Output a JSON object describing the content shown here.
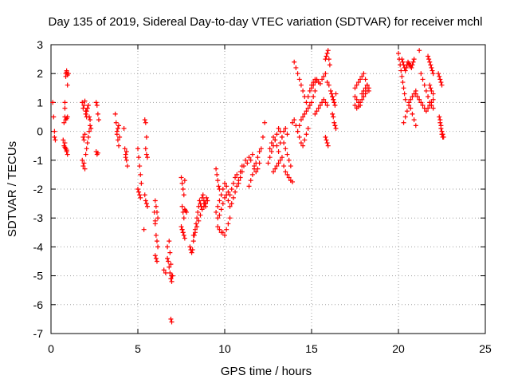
{
  "chart_data": {
    "type": "scatter",
    "title": "Day 135 of 2019, Sidereal Day-to-day VTEC variation (SDTVAR) for receiver mchl",
    "xlabel": "GPS time / hours",
    "ylabel": "SDTVAR / TECUs",
    "xlim": [
      0,
      25
    ],
    "ylim": [
      -7,
      3
    ],
    "xticks": [
      0,
      5,
      10,
      15,
      20,
      25
    ],
    "yticks": [
      3,
      2,
      1,
      0,
      -1,
      -2,
      -3,
      -4,
      -5,
      -6,
      -7
    ],
    "xtick_labels": [
      "0",
      "5",
      "10",
      "15",
      "20",
      "25"
    ],
    "ytick_labels": [
      "3",
      "2",
      "1",
      "0",
      "-1",
      "-2",
      "-3",
      "-4",
      "-5",
      "-6",
      "-7"
    ],
    "grid": true,
    "marker": "plus",
    "marker_color": "#ff0000",
    "series": [
      {
        "name": "SDTVAR",
        "x": [
          0.1,
          0.15,
          0.2,
          0.2,
          0.25,
          0.8,
          0.8,
          0.85,
          0.85,
          0.9,
          0.9,
          0.95,
          0.95,
          1.0,
          0.75,
          0.8,
          0.85,
          0.9,
          0.95,
          0.8,
          0.85,
          0.9,
          0.95,
          0.7,
          0.75,
          0.8,
          0.85,
          0.9,
          1.8,
          1.85,
          1.9,
          1.95,
          2.0,
          2.05,
          1.8,
          1.85,
          1.9,
          1.95,
          2.0,
          2.05,
          2.1,
          2.15,
          2.2,
          2.25,
          2.3,
          2.0,
          2.05,
          2.1,
          2.15,
          2.2,
          2.25,
          1.85,
          1.9,
          1.95,
          2.6,
          2.65,
          2.7,
          2.75,
          2.6,
          2.65,
          2.7,
          3.7,
          3.75,
          3.8,
          3.85,
          3.9,
          3.8,
          3.85,
          3.9,
          3.95,
          4.2,
          4.25,
          4.3,
          4.35,
          4.4,
          4.3,
          4.35,
          5.0,
          5.05,
          5.1,
          5.15,
          5.2,
          5.0,
          5.05,
          5.1,
          5.15,
          5.4,
          5.45,
          5.5,
          5.45,
          5.5,
          5.55,
          5.4,
          5.45,
          5.5,
          5.55,
          5.35,
          6.0,
          6.05,
          6.1,
          6.15,
          6.0,
          6.05,
          6.1,
          6.15,
          6.0,
          6.05,
          6.1,
          5.95,
          6.0,
          6.5,
          6.6,
          6.7,
          6.8,
          6.85,
          6.9,
          6.95,
          6.7,
          6.75,
          6.8,
          6.85,
          6.9,
          6.95,
          7.0,
          6.9,
          6.95,
          7.5,
          7.55,
          7.6,
          7.65,
          7.7,
          7.55,
          7.6,
          7.65,
          7.7,
          7.75,
          7.8,
          7.55,
          7.6,
          7.65,
          7.7,
          7.5,
          7.55,
          7.6,
          8.0,
          8.05,
          8.1,
          8.15,
          8.2,
          8.25,
          8.3,
          8.35,
          8.4,
          8.45,
          8.5,
          8.55,
          8.6,
          8.65,
          8.7,
          8.75,
          8.8,
          8.85,
          8.9,
          8.95,
          9.0,
          8.2,
          8.3,
          8.4,
          8.5,
          8.6,
          8.7,
          8.8,
          8.9,
          9.0,
          9.5,
          9.6,
          9.7,
          9.8,
          9.9,
          10.0,
          10.1,
          10.2,
          10.3,
          10.4,
          10.5,
          10.6,
          10.7,
          10.8,
          10.9,
          11.0,
          9.6,
          9.7,
          9.8,
          9.9,
          10.0,
          10.1,
          10.2,
          10.3,
          10.4,
          10.5,
          10.6,
          10.7,
          10.8,
          10.9,
          9.6,
          9.7,
          9.8,
          9.9,
          10.0,
          10.1,
          10.2,
          10.3,
          9.5,
          9.55,
          9.6,
          9.65,
          9.7,
          11.0,
          11.1,
          11.2,
          11.3,
          11.4,
          11.5,
          11.6,
          11.7,
          11.8,
          11.9,
          12.0,
          12.1,
          12.2,
          12.3,
          11.4,
          11.5,
          11.6,
          11.7,
          11.8,
          11.9,
          12.0,
          12.5,
          12.6,
          12.7,
          12.8,
          12.9,
          13.0,
          13.1,
          13.2,
          13.3,
          13.4,
          13.5,
          13.6,
          13.7,
          13.8,
          12.6,
          12.7,
          12.8,
          12.9,
          13.0,
          13.1,
          13.2,
          13.3,
          13.4,
          13.5,
          13.6,
          12.8,
          12.9,
          13.0,
          13.1,
          13.2,
          13.3,
          13.4,
          13.5,
          13.6,
          13.7,
          13.8,
          13.9,
          14.0,
          14.1,
          14.2,
          14.3,
          14.4,
          14.5,
          14.6,
          14.7,
          14.8,
          14.9,
          15.0,
          15.1,
          15.2,
          15.3,
          14.2,
          14.3,
          14.4,
          14.5,
          14.6,
          14.7,
          14.8,
          14.9,
          15.0,
          15.1,
          15.2,
          13.9,
          14.0,
          14.1,
          14.2,
          14.3,
          14.4,
          14.5,
          14.6,
          14.7,
          14.8,
          15.0,
          15.1,
          15.2,
          15.3,
          15.4,
          15.5,
          15.6,
          15.7,
          15.8,
          15.9,
          16.0,
          15.2,
          15.3,
          15.4,
          15.5,
          15.6,
          15.7,
          15.8,
          15.9,
          15.8,
          15.85,
          15.9,
          15.95,
          16.0,
          16.05,
          15.8,
          15.85,
          15.9,
          15.95,
          16.2,
          16.25,
          16.3,
          16.35,
          16.4,
          16.2,
          16.25,
          16.3,
          16.35,
          16.4,
          16.1,
          16.15,
          16.2,
          16.25,
          17.5,
          17.6,
          17.7,
          17.8,
          17.9,
          18.0,
          18.1,
          18.2,
          18.3,
          17.5,
          17.6,
          17.7,
          17.8,
          17.9,
          18.0,
          18.1,
          18.2,
          17.5,
          17.6,
          17.7,
          17.8,
          17.9,
          18.0,
          18.1,
          18.2,
          18.3,
          20.0,
          20.05,
          20.1,
          20.15,
          20.2,
          20.25,
          20.3,
          20.35,
          20.4,
          20.2,
          20.25,
          20.3,
          20.35,
          20.4,
          20.45,
          20.5,
          20.55,
          20.6,
          20.65,
          20.7,
          20.75,
          20.8,
          20.85,
          20.9,
          20.3,
          20.4,
          20.5,
          20.6,
          20.7,
          20.8,
          20.9,
          21.0,
          20.6,
          20.7,
          20.8,
          20.9,
          21.0,
          21.0,
          21.1,
          21.2,
          21.3,
          21.4,
          21.5,
          21.6,
          21.7,
          21.8,
          21.9,
          22.0,
          21.2,
          21.3,
          21.4,
          21.5,
          21.6,
          21.7,
          21.8,
          21.9,
          22.0,
          21.7,
          21.75,
          21.8,
          21.85,
          21.9,
          21.95,
          22.0,
          21.8,
          21.85,
          21.9,
          22.0,
          22.3,
          22.35,
          22.4,
          22.45,
          22.5,
          22.35,
          22.4,
          22.45,
          22.5,
          22.55,
          22.4,
          22.45,
          22.5,
          22.55,
          22.6
        ],
        "y": [
          1.0,
          0.5,
          0.0,
          -0.2,
          -0.3,
          1.0,
          0.8,
          1.9,
          2.0,
          2.05,
          2.1,
          1.95,
          1.6,
          2.0,
          0.3,
          0.5,
          0.4,
          0.45,
          0.5,
          -0.4,
          -0.6,
          -0.7,
          -0.8,
          -0.3,
          -0.5,
          -0.55,
          -0.6,
          -0.65,
          1.0,
          0.8,
          0.9,
          1.05,
          0.7,
          0.5,
          -1.0,
          -1.2,
          -1.1,
          -1.3,
          -0.8,
          -0.6,
          -0.4,
          -0.2,
          0.0,
          0.2,
          0.1,
          0.6,
          0.7,
          0.8,
          0.9,
          0.5,
          0.4,
          -0.2,
          -0.3,
          -0.1,
          1.0,
          0.9,
          0.6,
          0.4,
          -0.7,
          -0.8,
          -0.75,
          0.6,
          0.3,
          0.0,
          -0.3,
          -0.5,
          -0.1,
          0.1,
          0.2,
          -0.2,
          0.1,
          -0.6,
          -0.8,
          -1.0,
          -1.2,
          -0.9,
          -0.7,
          -0.6,
          -0.9,
          -1.2,
          -1.5,
          -1.8,
          -2.0,
          -2.1,
          -2.2,
          -2.3,
          0.4,
          0.3,
          -0.2,
          -0.6,
          -0.8,
          -0.9,
          -2.2,
          -2.4,
          -2.5,
          -2.6,
          -3.4,
          -2.4,
          -2.6,
          -2.8,
          -3.0,
          -3.2,
          -3.6,
          -3.8,
          -4.0,
          -4.3,
          -4.4,
          -4.5,
          -2.8,
          -3.1,
          -4.8,
          -4.9,
          -4.0,
          -3.8,
          -4.2,
          -4.6,
          -5.0,
          -4.4,
          -4.5,
          -4.7,
          -4.9,
          -5.1,
          -5.2,
          -5.0,
          -6.5,
          -6.6,
          -1.6,
          -1.8,
          -2.0,
          -2.2,
          -1.7,
          -2.6,
          -2.8,
          -3.0,
          -2.7,
          -2.75,
          -2.8,
          -3.4,
          -3.5,
          -3.6,
          -3.7,
          -3.3,
          -3.4,
          -3.5,
          -4.0,
          -4.1,
          -4.2,
          -4.1,
          -3.8,
          -3.6,
          -3.4,
          -3.2,
          -3.0,
          -2.8,
          -2.6,
          -2.4,
          -2.5,
          -2.6,
          -2.3,
          -2.2,
          -2.4,
          -2.5,
          -2.6,
          -2.3,
          -2.4,
          -3.6,
          -3.5,
          -3.3,
          -3.1,
          -2.9,
          -2.7,
          -2.6,
          -2.5,
          -2.4,
          -2.8,
          -2.6,
          -2.4,
          -2.2,
          -2.0,
          -1.8,
          -1.9,
          -2.1,
          -2.2,
          -2.0,
          -1.8,
          -1.6,
          -1.5,
          -1.7,
          -1.4,
          -1.2,
          -3.0,
          -2.9,
          -2.7,
          -2.5,
          -2.3,
          -2.2,
          -2.4,
          -2.6,
          -2.5,
          -2.3,
          -2.1,
          -1.9,
          -1.8,
          -1.6,
          -3.3,
          -3.4,
          -3.5,
          -3.5,
          -3.6,
          -3.4,
          -3.2,
          -3.0,
          -1.3,
          -1.5,
          -1.7,
          -1.9,
          -2.0,
          -1.4,
          -1.2,
          -1.0,
          -1.1,
          -0.9,
          -1.0,
          -0.8,
          -1.2,
          -1.4,
          -1.3,
          -1.1,
          -0.6,
          -0.2,
          0.3,
          -1.9,
          -1.7,
          -1.5,
          -1.3,
          -1.1,
          -0.9,
          -0.7,
          -1.1,
          -0.9,
          -0.7,
          -0.5,
          -0.3,
          -0.1,
          0.1,
          0.0,
          -0.2,
          -0.4,
          -0.6,
          -0.8,
          -1.0,
          -1.2,
          -0.6,
          -0.4,
          -0.2,
          -0.3,
          -0.5,
          -0.7,
          -0.4,
          -0.2,
          0.0,
          0.1,
          -0.1,
          -1.4,
          -1.3,
          -1.2,
          -1.1,
          -1.0,
          -0.9,
          -1.2,
          -1.4,
          -1.5,
          -1.6,
          -1.7,
          -1.75,
          2.4,
          2.2,
          2.0,
          1.8,
          1.6,
          1.4,
          1.2,
          1.0,
          1.2,
          1.4,
          1.5,
          1.6,
          1.7,
          1.8,
          0.0,
          0.2,
          0.4,
          0.5,
          0.6,
          0.7,
          0.8,
          0.9,
          1.0,
          1.2,
          1.4,
          0.3,
          0.4,
          0.2,
          0.0,
          -0.2,
          -0.4,
          -0.5,
          -0.3,
          -0.1,
          0.1,
          1.6,
          1.7,
          1.8,
          1.75,
          1.7,
          1.65,
          1.8,
          1.9,
          2.0,
          1.7,
          1.6,
          0.6,
          0.7,
          0.8,
          0.9,
          1.0,
          1.1,
          1.0,
          0.9,
          2.5,
          2.6,
          2.7,
          2.8,
          2.5,
          2.3,
          -0.2,
          -0.3,
          -0.4,
          -0.5,
          1.2,
          1.1,
          1.0,
          0.9,
          1.3,
          0.6,
          0.5,
          0.3,
          0.2,
          0.1,
          1.4,
          1.3,
          1.2,
          1.1,
          1.5,
          1.6,
          1.7,
          1.8,
          1.9,
          2.0,
          1.8,
          1.6,
          1.4,
          1.2,
          1.1,
          1.0,
          0.9,
          1.3,
          1.4,
          1.5,
          1.6,
          0.9,
          0.8,
          0.85,
          1.0,
          1.1,
          1.2,
          1.3,
          1.4,
          1.5,
          2.7,
          2.5,
          2.3,
          2.1,
          1.9,
          1.7,
          1.5,
          1.3,
          1.1,
          2.5,
          2.4,
          2.3,
          2.2,
          2.1,
          2.2,
          2.3,
          2.4,
          2.35,
          2.3,
          2.25,
          2.2,
          2.3,
          2.4,
          2.5,
          0.3,
          0.5,
          0.7,
          0.9,
          0.8,
          0.6,
          0.4,
          0.2,
          1.0,
          1.1,
          1.2,
          1.3,
          1.4,
          1.3,
          1.2,
          1.1,
          1.0,
          0.9,
          0.8,
          0.7,
          0.8,
          0.9,
          1.0,
          1.1,
          2.8,
          2.0,
          1.8,
          1.6,
          1.4,
          1.2,
          1.0,
          0.9,
          0.8,
          2.6,
          2.5,
          2.4,
          2.3,
          2.2,
          2.1,
          2.0,
          1.6,
          1.5,
          1.4,
          1.3,
          2.0,
          1.9,
          1.8,
          1.7,
          1.6,
          0.5,
          0.3,
          0.1,
          -0.1,
          -0.2,
          0.4,
          0.2,
          0.0,
          -0.1,
          -0.2
        ]
      }
    ]
  }
}
